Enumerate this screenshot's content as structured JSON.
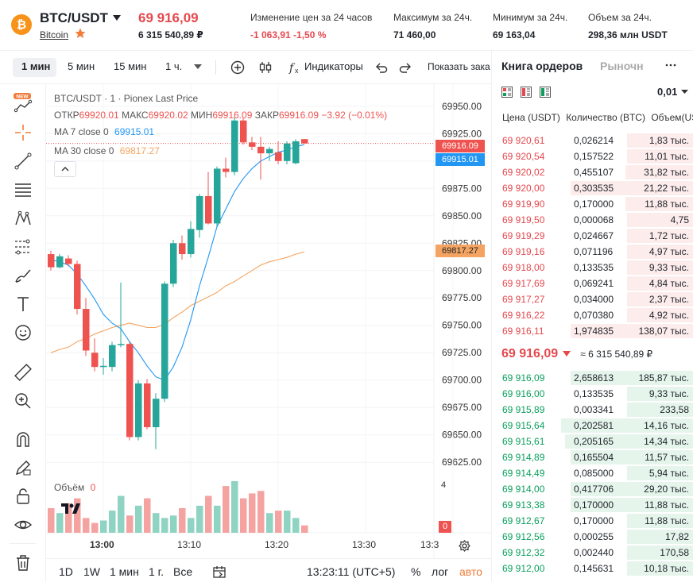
{
  "header": {
    "pair": "BTC/USDT",
    "coin_name": "Bitcoin",
    "last_price": "69 916,09",
    "last_price_rub": "6 315 540,89 ₽",
    "change_label": "Изменение цен за 24 часов",
    "change_value": "-1 063,91 -1,50 %",
    "high_label": "Максимум за 24ч.",
    "high_value": "71 460,00",
    "low_label": "Минимум за 24ч.",
    "low_value": "69 163,04",
    "volume_label": "Объем за 24ч.",
    "volume_value": "298,36 млн USDT"
  },
  "toolbar": {
    "intervals": [
      "1 мин",
      "5 мин",
      "15 мин",
      "1 ч."
    ],
    "indicators": "Индикаторы",
    "show_more": "Показать зака"
  },
  "chart": {
    "legend_title": "BTC/USDT · 1 · Pionex Last Price",
    "ohlc": {
      "o_label": "ОТКР",
      "o": "69920.01",
      "h_label": "МАКС",
      "h": "69920.02",
      "l_label": "МИН",
      "l": "69916.09",
      "c_label": "ЗАКР",
      "c": "69916.09",
      "chg": "−3.92 (−0.01%)"
    },
    "ma7_label": "MA 7 close 0",
    "ma7_value": "69915.01",
    "ma30_label": "MA 30 close 0",
    "ma30_value": "69817.27",
    "price_tag": "69916.09",
    "ma7_tag": "69915.01",
    "ma30_tag": "69817.27",
    "volume_label": "Объём",
    "volume_value": "0",
    "volume_axis_top": "4",
    "volume_axis_tag": "0",
    "time_labels": [
      "13:00",
      "13:10",
      "13:20",
      "13:30",
      "13:3"
    ],
    "price_ticks": [
      "69950.00",
      "69925.00",
      "69900.00",
      "69875.00",
      "69850.00",
      "69825.00",
      "69800.00",
      "69775.00",
      "69750.00",
      "69725.00",
      "69700.00",
      "69675.00",
      "69650.00",
      "69625.00"
    ]
  },
  "bottom": {
    "ranges": [
      "1D",
      "1W",
      "1 мин",
      "1 г.",
      "Все"
    ],
    "clock": "13:23:11 (UTC+5)",
    "percent": "%",
    "log": "лог",
    "auto": "авто"
  },
  "orderbook": {
    "tab_book": "Книга ордеров",
    "tab_market": "Рыночн",
    "precision": "0,01",
    "col_price": "Цена (USDT)",
    "col_qty": "Количество (BTC)",
    "col_vol": "Объем(USD",
    "mid_price": "69 916,09",
    "mid_rub": "≈ 6 315 540,89 ₽",
    "asks": [
      {
        "price": "69 920,61",
        "qty": "0,026214",
        "vol": "1,83 тыс.",
        "depth": 0.34
      },
      {
        "price": "69 920,54",
        "qty": "0,157522",
        "vol": "11,01 тыс.",
        "depth": 0.34
      },
      {
        "price": "69 920,02",
        "qty": "0,455107",
        "vol": "31,82 тыс.",
        "depth": 0.35
      },
      {
        "price": "69 920,00",
        "qty": "0,303535",
        "vol": "21,22 тыс.",
        "depth": 0.63
      },
      {
        "price": "69 919,90",
        "qty": "0,170000",
        "vol": "11,88 тыс.",
        "depth": 0.35
      },
      {
        "price": "69 919,50",
        "qty": "0,000068",
        "vol": "4,75",
        "depth": 0.34
      },
      {
        "price": "69 919,29",
        "qty": "0,024667",
        "vol": "1,72 тыс.",
        "depth": 0.34
      },
      {
        "price": "69 919,16",
        "qty": "0,071196",
        "vol": "4,97 тыс.",
        "depth": 0.34
      },
      {
        "price": "69 918,00",
        "qty": "0,133535",
        "vol": "9,33 тыс.",
        "depth": 0.34
      },
      {
        "price": "69 917,69",
        "qty": "0,069241",
        "vol": "4,84 тыс.",
        "depth": 0.34
      },
      {
        "price": "69 917,27",
        "qty": "0,034000",
        "vol": "2,37 тыс.",
        "depth": 0.34
      },
      {
        "price": "69 916,22",
        "qty": "0,070380",
        "vol": "4,92 тыс.",
        "depth": 0.34
      },
      {
        "price": "69 916,11",
        "qty": "1,974835",
        "vol": "138,07 тыс.",
        "depth": 0.63
      }
    ],
    "bids": [
      {
        "price": "69 916,09",
        "qty": "2,658613",
        "vol": "185,87 тыс.",
        "depth": 0.63
      },
      {
        "price": "69 916,00",
        "qty": "0,133535",
        "vol": "9,33 тыс.",
        "depth": 0.34
      },
      {
        "price": "69 915,89",
        "qty": "0,003341",
        "vol": "233,58",
        "depth": 0.34
      },
      {
        "price": "69 915,64",
        "qty": "0,202581",
        "vol": "14,16 тыс.",
        "depth": 0.68
      },
      {
        "price": "69 915,61",
        "qty": "0,205165",
        "vol": "14,34 тыс.",
        "depth": 0.66
      },
      {
        "price": "69 914,89",
        "qty": "0,165504",
        "vol": "11,57 тыс.",
        "depth": 0.63
      },
      {
        "price": "69 914,49",
        "qty": "0,085000",
        "vol": "5,94 тыс.",
        "depth": 0.34
      },
      {
        "price": "69 914,00",
        "qty": "0,417706",
        "vol": "29,20 тыс.",
        "depth": 0.63
      },
      {
        "price": "69 913,38",
        "qty": "0,170000",
        "vol": "11,88 тыс.",
        "depth": 0.63
      },
      {
        "price": "69 912,67",
        "qty": "0,170000",
        "vol": "11,88 тыс.",
        "depth": 0.34
      },
      {
        "price": "69 912,56",
        "qty": "0,000255",
        "vol": "17,82",
        "depth": 0.34
      },
      {
        "price": "69 912,32",
        "qty": "0,002440",
        "vol": "170,58",
        "depth": 0.34
      },
      {
        "price": "69 912,00",
        "qty": "0,145631",
        "vol": "10,18 тыс.",
        "depth": 0.34
      }
    ]
  },
  "colors": {
    "up": "#26a69a",
    "down": "#ef5350",
    "accent": "#e5484d",
    "ma7": "#2196f3",
    "ma30": "#f4a460",
    "bid": "#0a9f5c"
  },
  "chart_data": {
    "type": "candlestick",
    "candles": [
      {
        "o": 69815,
        "h": 69818,
        "l": 69800,
        "c": 69803
      },
      {
        "o": 69803,
        "h": 69815,
        "l": 69802,
        "c": 69813
      },
      {
        "o": 69811,
        "h": 69814,
        "l": 69804,
        "c": 69806
      },
      {
        "o": 69806,
        "h": 69809,
        "l": 69760,
        "c": 69765
      },
      {
        "o": 69765,
        "h": 69775,
        "l": 69722,
        "c": 69727
      },
      {
        "o": 69725,
        "h": 69738,
        "l": 69708,
        "c": 69712
      },
      {
        "o": 69712,
        "h": 69720,
        "l": 69705,
        "c": 69713
      },
      {
        "o": 69712,
        "h": 69735,
        "l": 69708,
        "c": 69732
      },
      {
        "o": 69733,
        "h": 69789,
        "l": 69730,
        "c": 69733
      },
      {
        "o": 69733,
        "h": 69735,
        "l": 69645,
        "c": 69648
      },
      {
        "o": 69648,
        "h": 69700,
        "l": 69645,
        "c": 69697
      },
      {
        "o": 69697,
        "h": 69701,
        "l": 69655,
        "c": 69657
      },
      {
        "o": 69657,
        "h": 69688,
        "l": 69637,
        "c": 69683
      },
      {
        "o": 69683,
        "h": 69790,
        "l": 69680,
        "c": 69788
      },
      {
        "o": 69788,
        "h": 69828,
        "l": 69785,
        "c": 69825
      },
      {
        "o": 69825,
        "h": 69832,
        "l": 69810,
        "c": 69815
      },
      {
        "o": 69815,
        "h": 69845,
        "l": 69812,
        "c": 69838
      },
      {
        "o": 69837,
        "h": 69870,
        "l": 69830,
        "c": 69868
      },
      {
        "o": 69868,
        "h": 69890,
        "l": 69842,
        "c": 69843
      },
      {
        "o": 69843,
        "h": 69895,
        "l": 69840,
        "c": 69893
      },
      {
        "o": 69893,
        "h": 69903,
        "l": 69885,
        "c": 69890
      },
      {
        "o": 69890,
        "h": 69940,
        "l": 69887,
        "c": 69937
      },
      {
        "o": 69937,
        "h": 69940,
        "l": 69915,
        "c": 69917
      },
      {
        "o": 69917,
        "h": 69922,
        "l": 69910,
        "c": 69913
      },
      {
        "o": 69913,
        "h": 69922,
        "l": 69883,
        "c": 69907
      },
      {
        "o": 69907,
        "h": 69913,
        "l": 69900,
        "c": 69911
      },
      {
        "o": 69908,
        "h": 69918,
        "l": 69897,
        "c": 69900
      },
      {
        "o": 69900,
        "h": 69918,
        "l": 69897,
        "c": 69916
      },
      {
        "o": 69898,
        "h": 69920,
        "l": 69897,
        "c": 69918
      },
      {
        "o": 69920,
        "h": 69920,
        "l": 69916,
        "c": 69916
      }
    ],
    "ma7": [
      69810,
      69808,
      69805,
      69797,
      69786,
      69774,
      69760,
      69752,
      69747,
      69735,
      69725,
      69713,
      69703,
      69700,
      69712,
      69730,
      69755,
      69786,
      69812,
      69840,
      69856,
      69872,
      69884,
      69893,
      69900,
      69904,
      69908,
      69910,
      69913,
      69915
    ],
    "ma30": [
      69725,
      69728,
      69730,
      69735,
      69738,
      69742,
      69745,
      69748,
      69750,
      69752,
      69750,
      69748,
      69748,
      69751,
      69757,
      69762,
      69768,
      69772,
      69776,
      69780,
      69786,
      69790,
      69795,
      69800,
      69805,
      69808,
      69810,
      69812,
      69815,
      69817
    ],
    "volumes": [
      1.0,
      0.8,
      1.2,
      1.4,
      0.6,
      0.4,
      0.5,
      0.9,
      1.5,
      0.7,
      1.1,
      1.4,
      0.8,
      0.6,
      0.7,
      1.0,
      0.6,
      1.1,
      1.5,
      1.1,
      1.9,
      2.1,
      1.4,
      1.6,
      1.7,
      0.8,
      0.9,
      0.9,
      0.6,
      0.3
    ],
    "ylim": [
      69615,
      69960
    ],
    "xlabel": "",
    "ylabel": ""
  }
}
